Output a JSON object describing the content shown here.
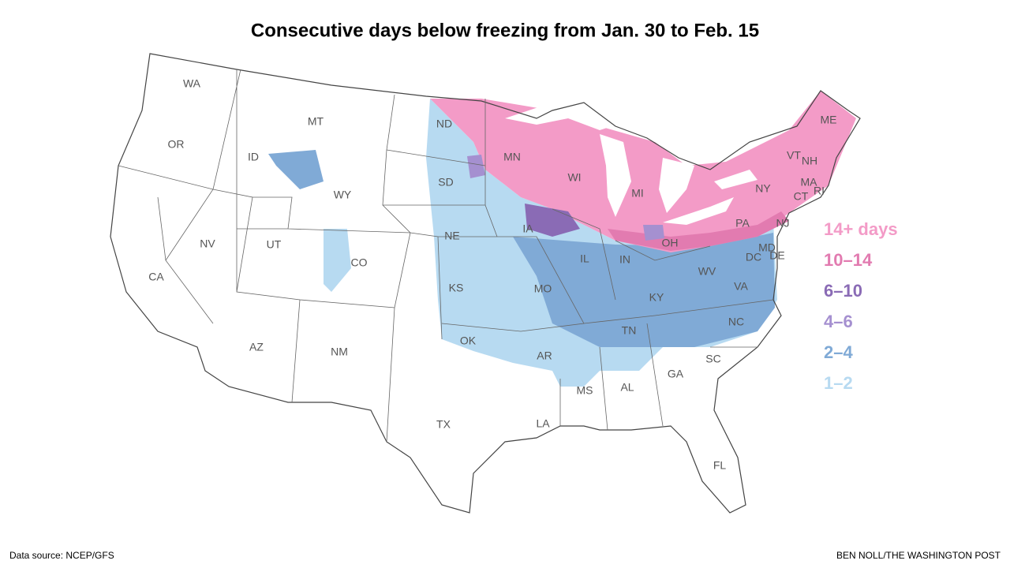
{
  "title": "Consecutive days below freezing from Jan. 30 to Feb. 15",
  "states": [
    "WA",
    "OR",
    "CA",
    "ID",
    "NV",
    "MT",
    "WY",
    "UT",
    "AZ",
    "CO",
    "NM",
    "ND",
    "SD",
    "NE",
    "KS",
    "OK",
    "TX",
    "MN",
    "IA",
    "MO",
    "AR",
    "LA",
    "WI",
    "IL",
    "MI",
    "IN",
    "OH",
    "KY",
    "TN",
    "MS",
    "AL",
    "GA",
    "FL",
    "SC",
    "NC",
    "VA",
    "WV",
    "PA",
    "NY",
    "VT",
    "NH",
    "ME",
    "MA",
    "CT",
    "RI",
    "NJ",
    "MD",
    "DE",
    "DC"
  ],
  "legend": [
    {
      "label": "14+ days",
      "color": "#f39bc7"
    },
    {
      "label": "10–14",
      "color": "#e27bb0"
    },
    {
      "label": "6–10",
      "color": "#8a6bb5"
    },
    {
      "label": "4–6",
      "color": "#a590d0"
    },
    {
      "label": "2–4",
      "color": "#80aad6"
    },
    {
      "label": "1–2",
      "color": "#b7daf1"
    }
  ],
  "source": "Data source: NCEP/GFS",
  "credit": "BEN NOLL/THE WASHINGTON POST"
}
